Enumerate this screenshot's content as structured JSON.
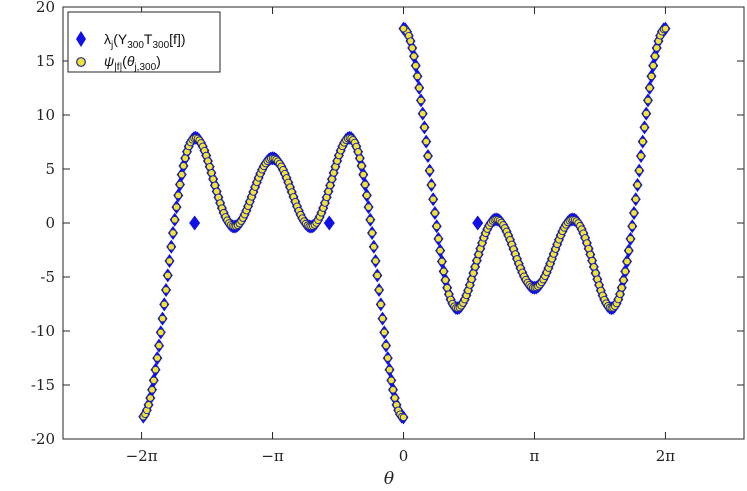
{
  "chart_data": {
    "type": "scatter",
    "xlabel": "θ",
    "ylabel": "",
    "xlim": [
      -8.168,
      8.168
    ],
    "ylim": [
      -20,
      20
    ],
    "grid": false,
    "legend_position": "top-left",
    "x_ticks": [
      {
        "value": -6.2832,
        "label": "−2π"
      },
      {
        "value": -3.1416,
        "label": "−π"
      },
      {
        "value": 0,
        "label": "0"
      },
      {
        "value": 3.1416,
        "label": "π"
      },
      {
        "value": 6.2832,
        "label": "2π"
      }
    ],
    "y_ticks": [
      -20,
      -15,
      -10,
      -5,
      0,
      5,
      10,
      15,
      20
    ],
    "curve_formula": "y = 6cos(θ) + 6cos(2θ) + 6cos(3θ) on (0, 2π]; negated on [−2π, 0)",
    "colors": {
      "eigenvalue_marker": "#1010e6",
      "psi_fill": "#f2e23a",
      "psi_edge": "#1f2a8a"
    },
    "series": [
      {
        "key": "eigenvalues",
        "name": "λj(Y300T300[f])",
        "legend": {
          "main": "λ",
          "sub1": "j",
          "mid1": "(Y",
          "sub2": "300",
          "mid2": "T",
          "sub3": "300",
          "tail": "[f])"
        },
        "marker": "diamond",
        "outliers": [
          {
            "x": -5.01,
            "y": 0
          },
          {
            "x": -1.78,
            "y": 0
          },
          {
            "x": 1.78,
            "y": 0
          }
        ]
      },
      {
        "key": "psi",
        "name": "ψ|f|(θj,300)",
        "legend": {
          "main": "ψ",
          "sub1": "|f|",
          "mid1": "(",
          "italic2": "θ",
          "sub2": "j,300",
          "tail": ")"
        },
        "marker": "circle"
      }
    ]
  }
}
